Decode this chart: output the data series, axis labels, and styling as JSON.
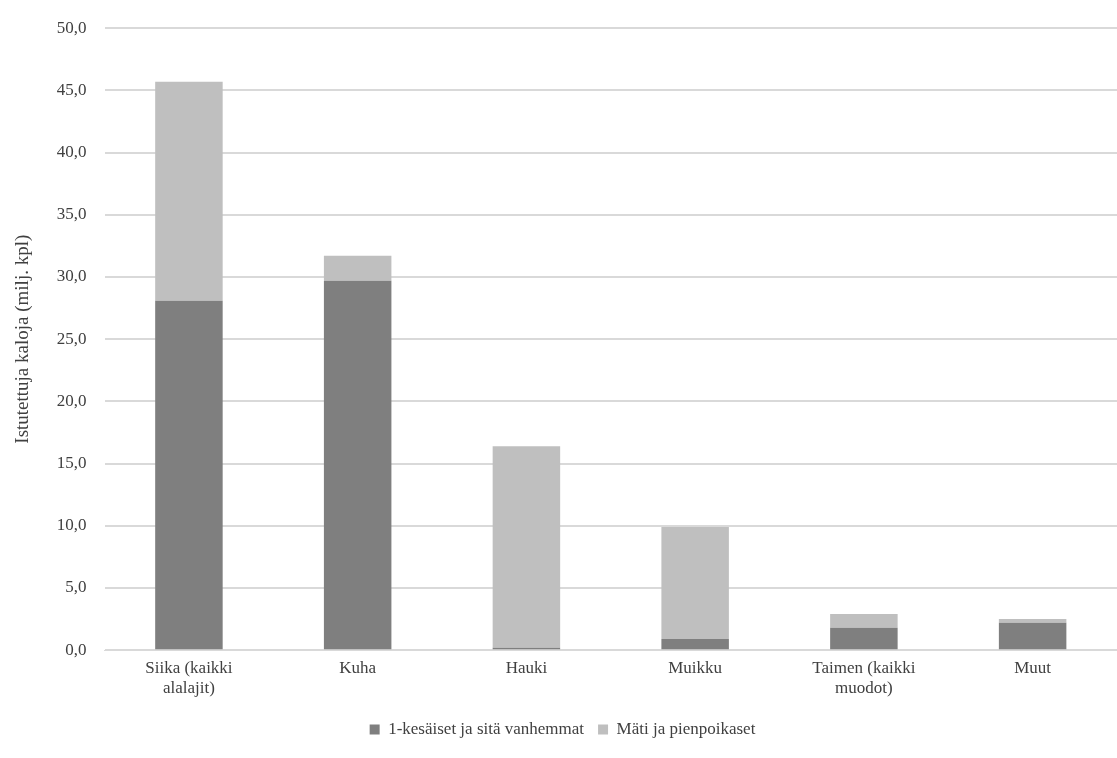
{
  "chart_data": {
    "type": "bar",
    "stacked": true,
    "ylabel": "Istutettuja kaloja (milj. kpl)",
    "categories": [
      "Siika (kaikki alalajit)",
      "Kuha",
      "Hauki",
      "Muikku",
      "Taimen (kaikki muodot)",
      "Muut"
    ],
    "series": [
      {
        "name": "1-kesäiset ja sitä vanhemmat",
        "color": "#7f7f7f",
        "values": [
          28.1,
          29.7,
          0.2,
          0.9,
          1.8,
          2.2
        ]
      },
      {
        "name": "Mäti ja pienpoikaset",
        "color": "#bfbfbf",
        "values": [
          17.6,
          2.0,
          16.2,
          9.0,
          1.1,
          0.3
        ]
      }
    ],
    "ylim": [
      0,
      50
    ],
    "yticks": [
      {
        "value": 0,
        "label": "0,0"
      },
      {
        "value": 5,
        "label": "5,0"
      },
      {
        "value": 10,
        "label": "10,0"
      },
      {
        "value": 15,
        "label": "15,0"
      },
      {
        "value": 20,
        "label": "20,0"
      },
      {
        "value": 25,
        "label": "25,0"
      },
      {
        "value": 30,
        "label": "30,0"
      },
      {
        "value": 35,
        "label": "35,0"
      },
      {
        "value": 40,
        "label": "40,0"
      },
      {
        "value": 45,
        "label": "45,0"
      },
      {
        "value": 50,
        "label": "50,0"
      }
    ],
    "grid": "y",
    "legend": "bottom"
  }
}
